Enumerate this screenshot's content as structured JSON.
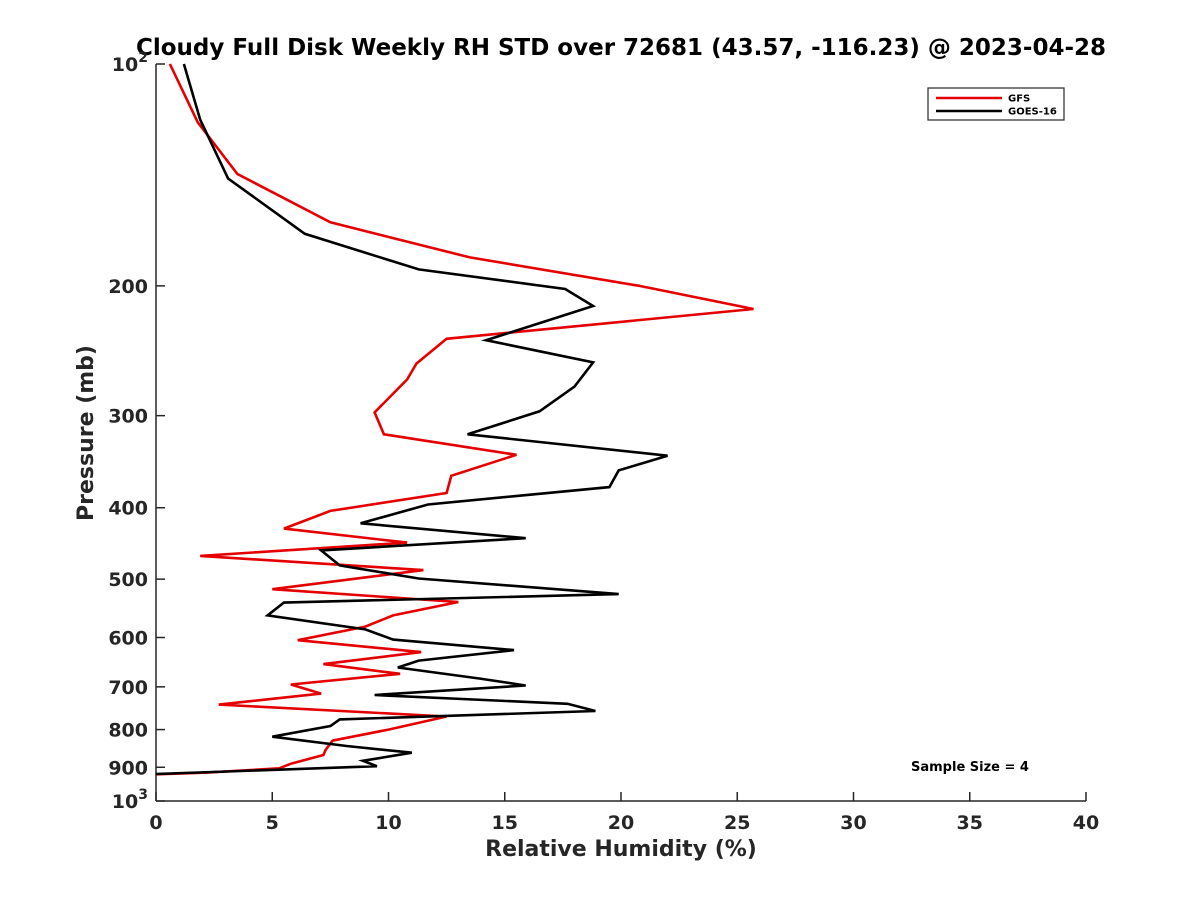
{
  "chart_data": {
    "type": "line",
    "title": "Cloudy Full Disk Weekly RH STD over 72681 (43.57, -116.23) @ 2023-04-28",
    "xlabel": "Relative Humidity (%)",
    "ylabel": "Pressure (mb)",
    "xlim": [
      0,
      40
    ],
    "ylim": [
      100,
      1000
    ],
    "y_scale": "log",
    "y_reversed": true,
    "grid": false,
    "legend_position": "top-right",
    "x_ticks": [
      "0",
      "5",
      "10",
      "15",
      "20",
      "25",
      "30",
      "35",
      "40"
    ],
    "y_ticks": [
      {
        "value": 100,
        "base": "10",
        "exp": "2"
      },
      {
        "value": 200,
        "label": "200"
      },
      {
        "value": 300,
        "label": "300"
      },
      {
        "value": 400,
        "label": "400"
      },
      {
        "value": 500,
        "label": "500"
      },
      {
        "value": 600,
        "label": "600"
      },
      {
        "value": 700,
        "label": "700"
      },
      {
        "value": 800,
        "label": "800"
      },
      {
        "value": 900,
        "label": "900"
      },
      {
        "value": 1000,
        "base": "10",
        "exp": "3"
      }
    ],
    "annotation": "Sample Size = 4",
    "series": [
      {
        "name": "GFS",
        "color": "#e50000",
        "points": [
          [
            0.6,
            100
          ],
          [
            1.8,
            120
          ],
          [
            3.5,
            141
          ],
          [
            7.5,
            164
          ],
          [
            13.5,
            183
          ],
          [
            20.8,
            200
          ],
          [
            25.7,
            215
          ],
          [
            12.5,
            236
          ],
          [
            11.2,
            255
          ],
          [
            10.8,
            268
          ],
          [
            9.4,
            297
          ],
          [
            9.8,
            318
          ],
          [
            15.5,
            339
          ],
          [
            12.7,
            362
          ],
          [
            12.5,
            382
          ],
          [
            7.5,
            404
          ],
          [
            5.5,
            427
          ],
          [
            10.8,
            446
          ],
          [
            1.9,
            465
          ],
          [
            11.5,
            486
          ],
          [
            5.0,
            516
          ],
          [
            13.0,
            537
          ],
          [
            10.2,
            560
          ],
          [
            9.0,
            580
          ],
          [
            6.1,
            605
          ],
          [
            11.4,
            628
          ],
          [
            7.2,
            652
          ],
          [
            10.5,
            672
          ],
          [
            5.8,
            695
          ],
          [
            7.1,
            715
          ],
          [
            2.7,
            740
          ],
          [
            12.5,
            768
          ],
          [
            10.0,
            800
          ],
          [
            7.6,
            828
          ],
          [
            7.3,
            852
          ],
          [
            7.2,
            866
          ],
          [
            5.8,
            890
          ],
          [
            5.3,
            903
          ],
          [
            2.2,
            915
          ],
          [
            0.0,
            920
          ]
        ]
      },
      {
        "name": "GOES-16",
        "color": "#000000",
        "points": [
          [
            1.2,
            100
          ],
          [
            1.9,
            119
          ],
          [
            3.1,
            143
          ],
          [
            6.4,
            170
          ],
          [
            11.3,
            190
          ],
          [
            17.6,
            202
          ],
          [
            18.8,
            213
          ],
          [
            14.2,
            237
          ],
          [
            18.8,
            254
          ],
          [
            18.0,
            274
          ],
          [
            16.5,
            296
          ],
          [
            13.4,
            318
          ],
          [
            22.0,
            340
          ],
          [
            19.9,
            356
          ],
          [
            19.5,
            375
          ],
          [
            11.7,
            396
          ],
          [
            8.8,
            420
          ],
          [
            15.9,
            440
          ],
          [
            7.1,
            457
          ],
          [
            7.9,
            479
          ],
          [
            11.3,
            499
          ],
          [
            19.9,
            524
          ],
          [
            5.5,
            538
          ],
          [
            4.8,
            560
          ],
          [
            9.0,
            585
          ],
          [
            10.2,
            604
          ],
          [
            15.4,
            624
          ],
          [
            11.3,
            645
          ],
          [
            10.4,
            659
          ],
          [
            13.9,
            682
          ],
          [
            15.9,
            697
          ],
          [
            9.4,
            718
          ],
          [
            17.7,
            738
          ],
          [
            18.9,
            755
          ],
          [
            7.9,
            775
          ],
          [
            7.5,
            791
          ],
          [
            5.0,
            818
          ],
          [
            8.2,
            842
          ],
          [
            11.0,
            860
          ],
          [
            8.9,
            882
          ],
          [
            9.5,
            897
          ],
          [
            0.0,
            919
          ]
        ]
      }
    ]
  }
}
